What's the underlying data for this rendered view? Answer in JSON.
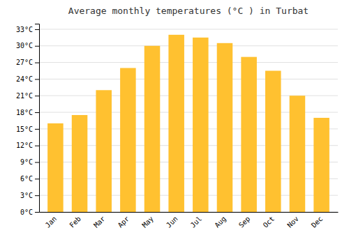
{
  "chart_data": {
    "type": "bar",
    "title": "Average monthly temperatures (°C ) in Turbat",
    "categories": [
      "Jan",
      "Feb",
      "Mar",
      "Apr",
      "May",
      "Jun",
      "Jul",
      "Aug",
      "Sep",
      "Oct",
      "Nov",
      "Dec"
    ],
    "values": [
      16,
      17.5,
      22,
      26,
      30,
      32,
      31.5,
      30.5,
      28,
      25.5,
      21,
      17
    ],
    "color": "#FFC130",
    "ylim": [
      0,
      34
    ],
    "yticks": [
      {
        "value": 0,
        "label": "0°C"
      },
      {
        "value": 3,
        "label": "3°C"
      },
      {
        "value": 6,
        "label": "6°C"
      },
      {
        "value": 9,
        "label": "9°C"
      },
      {
        "value": 12,
        "label": "12°C"
      },
      {
        "value": 15,
        "label": "15°C"
      },
      {
        "value": 18,
        "label": "18°C"
      },
      {
        "value": 21,
        "label": "21°C"
      },
      {
        "value": 24,
        "label": "24°C"
      },
      {
        "value": 27,
        "label": "27°C"
      },
      {
        "value": 30,
        "label": "30°C"
      },
      {
        "value": 33,
        "label": "33°C"
      }
    ],
    "grid": true
  }
}
